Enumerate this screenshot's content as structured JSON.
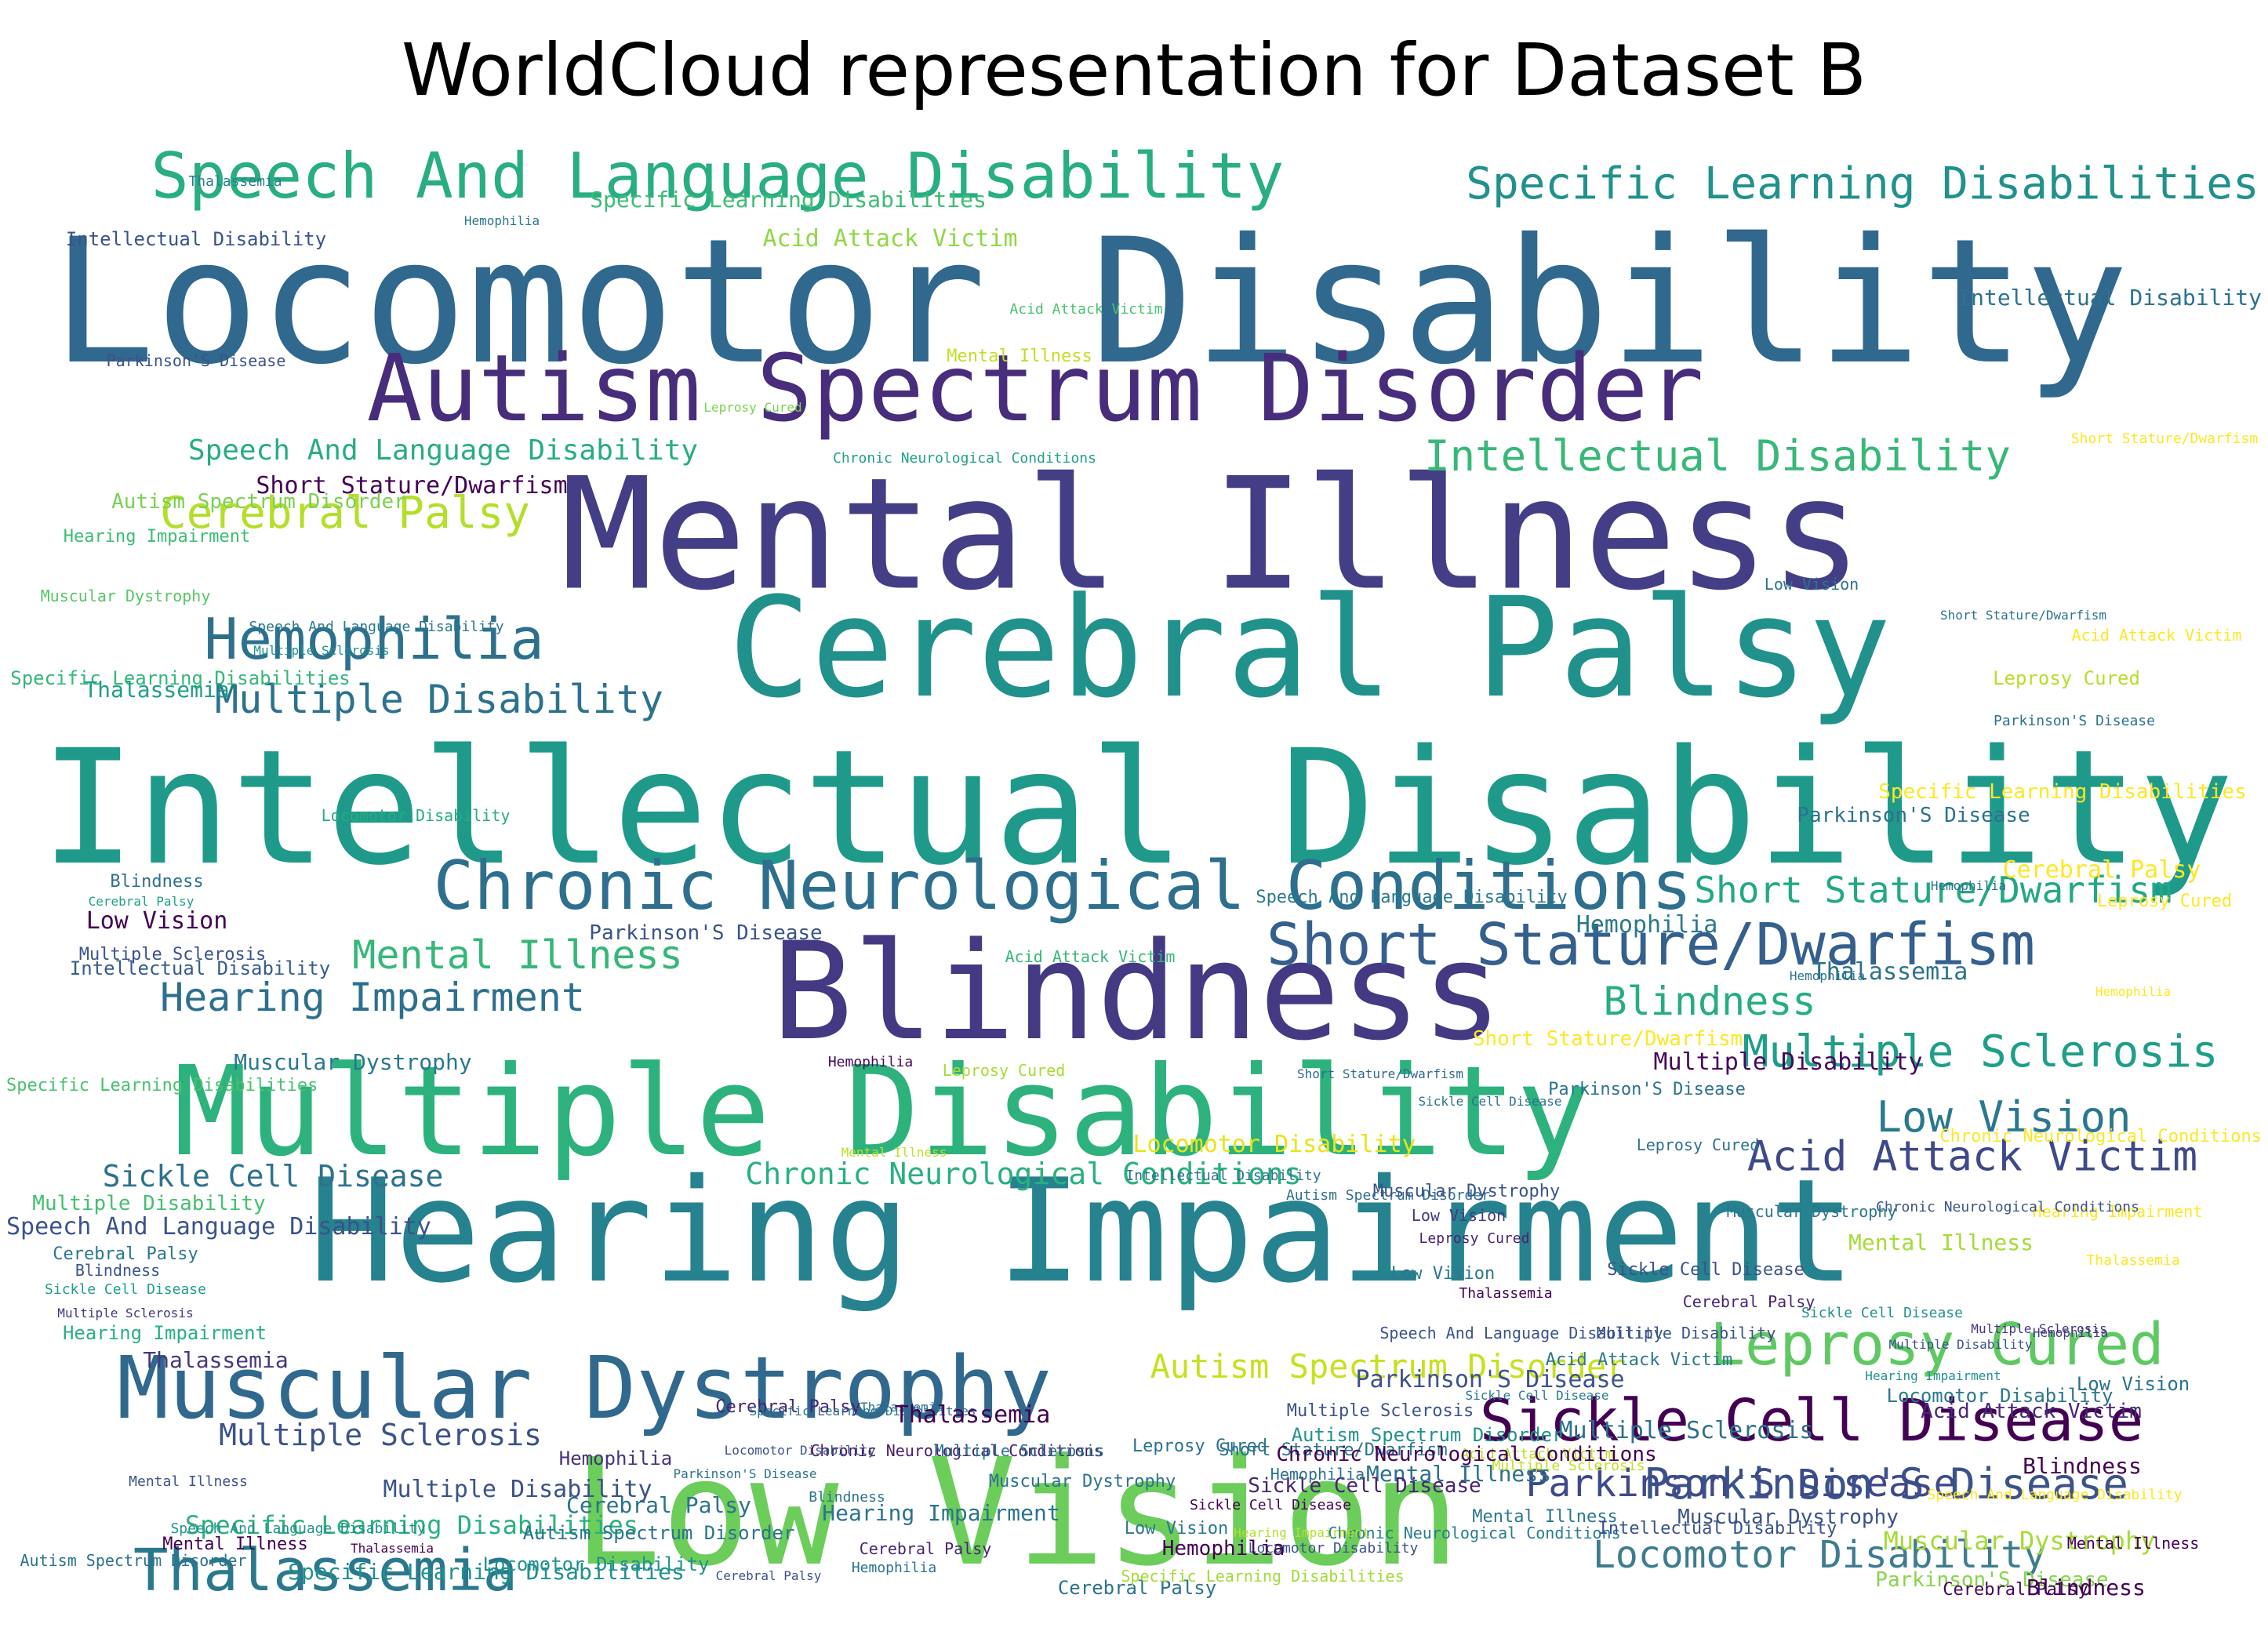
{
  "title": "WorldCloud representation for Dataset B",
  "words": [
    {
      "text": "Locomotor Disability",
      "color": "#31688e"
    },
    {
      "text": "Intellectual Disability",
      "color": "#1f9a8a"
    },
    {
      "text": "Mental Illness",
      "color": "#433e85"
    },
    {
      "text": "Hearing Impairment",
      "color": "#26828e"
    },
    {
      "text": "Blindness",
      "color": "#443983"
    },
    {
      "text": "Cerebral Palsy",
      "color": "#21918c"
    },
    {
      "text": "Low Vision",
      "color": "#6ccd5a"
    },
    {
      "text": "Multiple Disability",
      "color": "#2db27d"
    },
    {
      "text": "Autism Spectrum Disorder",
      "color": "#472d7b"
    },
    {
      "text": "Speech And Language Disability",
      "color": "#28ae80"
    },
    {
      "text": "Chronic Neurological Conditions",
      "color": "#2e6f8e"
    },
    {
      "text": "Muscular Dystrophy",
      "color": "#31688e"
    },
    {
      "text": "Specific Learning Disabilities",
      "color": "#21918c"
    },
    {
      "text": "Short Stature/Dwarfism",
      "color": "#355f8d"
    },
    {
      "text": "Sickle Cell Disease",
      "color": "#440154"
    },
    {
      "text": "Leprosy Cured",
      "color": "#5ec962"
    },
    {
      "text": "Thalassemia",
      "color": "#2a788e"
    },
    {
      "text": "Parkinson'S Disease",
      "color": "#3b528b"
    },
    {
      "text": "Acid Attack Victim",
      "color": "#3e4989"
    },
    {
      "text": "Multiple Sclerosis",
      "color": "#1f9e89"
    },
    {
      "text": "Hemophilia",
      "color": "#2d708e"
    },
    {
      "text": "Hearing Impairment",
      "color": "#2d708e"
    },
    {
      "text": "Mental Illness",
      "color": "#35b779"
    },
    {
      "text": "Multiple Disability",
      "color": "#2c728e"
    },
    {
      "text": "Cerebral Palsy",
      "color": "#b5de2b"
    },
    {
      "text": "Intellectual Disability",
      "color": "#37b878"
    },
    {
      "text": "Blindness",
      "color": "#27ad81"
    },
    {
      "text": "Multiple Sclerosis",
      "color": "#3b528b"
    },
    {
      "text": "Chronic Neurological Conditions",
      "color": "#2ab07f"
    },
    {
      "text": "Sickle Cell Disease",
      "color": "#2c728e"
    },
    {
      "text": "Acid Attack Victim",
      "color": "#8fd744"
    },
    {
      "text": "Autism Spectrum Disorder",
      "color": "#c8e020"
    },
    {
      "text": "Leprosy Cured",
      "color": "#2c728e"
    },
    {
      "text": "Locomotor Disability",
      "color": "#3e7c8f"
    },
    {
      "text": "Speech And Language Disability",
      "color": "#27ad81"
    },
    {
      "text": "Specific Learning Disabilities",
      "color": "#2ab07f"
    },
    {
      "text": "Low Vision",
      "color": "#2a788e"
    },
    {
      "text": "Parkinson'S Disease",
      "color": "#3e4a89"
    },
    {
      "text": "Short Stature/Dwarfism",
      "color": "#22a884"
    },
    {
      "text": "Muscular Dystrophy",
      "color": "#a5db36"
    },
    {
      "text": "Thalassemia",
      "color": "#287c8e"
    },
    {
      "text": "Hemophilia",
      "color": "#2a788e"
    },
    {
      "text": "Intellectual Disability",
      "color": "#3b528b"
    },
    {
      "text": "Specific Learning Disabilities",
      "color": "#3dbc74"
    },
    {
      "text": "Acid Attack Victim",
      "color": "#4ac16d"
    },
    {
      "text": "Parkinson'S Disease",
      "color": "#3b528b"
    },
    {
      "text": "Mental Illness",
      "color": "#c2df23"
    },
    {
      "text": "Leprosy Cured",
      "color": "#7ad151"
    },
    {
      "text": "Short Stature/Dwarfism",
      "color": "#440154"
    },
    {
      "text": "Autism Spectrum Disorder",
      "color": "#7ad151"
    },
    {
      "text": "Hearing Impairment",
      "color": "#3dbc74"
    },
    {
      "text": "Muscular Dystrophy",
      "color": "#56c667"
    },
    {
      "text": "Speech And Language Disability",
      "color": "#2a788e"
    },
    {
      "text": "Multiple Sclerosis",
      "color": "#21918c"
    },
    {
      "text": "Specific Learning Disabilities",
      "color": "#35b779"
    },
    {
      "text": "Thalassemia",
      "color": "#1f9e89"
    },
    {
      "text": "Chronic Neurological Conditions",
      "color": "#1fa188"
    },
    {
      "text": "Locomotor Disability",
      "color": "#25ab82"
    },
    {
      "text": "Blindness",
      "color": "#2e6f8e"
    },
    {
      "text": "Cerebral Palsy",
      "color": "#1fa188"
    },
    {
      "text": "Low Vision",
      "color": "#440154"
    },
    {
      "text": "Parkinson'S Disease",
      "color": "#3b528b"
    },
    {
      "text": "Multiple Sclerosis",
      "color": "#3b528b"
    },
    {
      "text": "Acid Attack Victim",
      "color": "#35b779"
    },
    {
      "text": "Autism Spectrum Disorder",
      "color": "#2e6f8e"
    },
    {
      "text": "Mental Illness",
      "color": "#bddf26"
    },
    {
      "text": "Intellectual Disability",
      "color": "#365c8d"
    },
    {
      "text": "Muscular Dystrophy",
      "color": "#2a788e"
    },
    {
      "text": "Hemophilia",
      "color": "#46085c"
    },
    {
      "text": "Leprosy Cured",
      "color": "#a8db34"
    },
    {
      "text": "Specific Learning Disabilities",
      "color": "#47c16e"
    },
    {
      "text": "Short Stature/Dwarfism",
      "color": "#30698e"
    },
    {
      "text": "Speech And Language Disability",
      "color": "#3b528b"
    },
    {
      "text": "Multiple Disability",
      "color": "#44bf70"
    },
    {
      "text": "Cerebral Palsy",
      "color": "#2a788e"
    },
    {
      "text": "Blindness",
      "color": "#3b528b"
    },
    {
      "text": "Sickle Cell Disease",
      "color": "#1f9e89"
    },
    {
      "text": "Multiple Sclerosis",
      "color": "#46327e"
    },
    {
      "text": "Hearing Impairment",
      "color": "#2ab07f"
    },
    {
      "text": "Thalassemia",
      "color": "#453781"
    },
    {
      "text": "Mental Illness",
      "color": "#3b528b"
    },
    {
      "text": "Chronic Neurological Conditions",
      "color": "#481b6d"
    },
    {
      "text": "Cerebral Palsy",
      "color": "#482475"
    },
    {
      "text": "Thalassemia",
      "color": "#2c728e"
    },
    {
      "text": "Locomotor Disability",
      "color": "#e7e419"
    },
    {
      "text": "Acid Attack Victim",
      "color": "#482878"
    },
    {
      "text": "Sickle Cell Disease",
      "color": "#3b528b"
    },
    {
      "text": "Low Vision",
      "color": "#443983"
    },
    {
      "text": "Leprosy Cured",
      "color": "#482173"
    },
    {
      "text": "Locomotor Disability",
      "color": "#3b528b"
    },
    {
      "text": "Hemophilia",
      "color": "#46327e"
    },
    {
      "text": "Cerebral Palsy",
      "color": "#2c728e"
    },
    {
      "text": "Thalassemia",
      "color": "#440154"
    },
    {
      "text": "Speech And Language Disability",
      "color": "#3b528b"
    },
    {
      "text": "Multiple Sclerosis",
      "color": "#3b528b"
    },
    {
      "text": "Hemophilia",
      "color": "#433e85"
    },
    {
      "text": "Thalassemia",
      "color": "#2c728e"
    },
    {
      "text": "Parkinson'S Disease",
      "color": "#86d549"
    },
    {
      "text": "Mental Illness",
      "color": "#2a788e"
    },
    {
      "text": "Chronic Neurological Conditions",
      "color": "#287c8e"
    },
    {
      "text": "Acid Attack Victim",
      "color": "#b8de29"
    },
    {
      "text": "Hemophilia",
      "color": "#2c728e"
    },
    {
      "text": "Cerebral Palsy",
      "color": "#2c728e"
    },
    {
      "text": "Blindness",
      "color": "#440154"
    },
    {
      "text": "Intellectual Disability",
      "color": "#2c728e"
    },
    {
      "text": "Leprosy Cured",
      "color": "#2d708e"
    },
    {
      "text": "Low Vision",
      "color": "#2a788e"
    },
    {
      "text": "Multiple Disability",
      "color": "#3b528b"
    },
    {
      "text": "Multiple Sclerosis",
      "color": "#2e6f8e"
    },
    {
      "text": "Muscular Dystrophy",
      "color": "#3b528b"
    },
    {
      "text": "Intellectual Disability",
      "color": "#3b528b"
    },
    {
      "text": "Specific Learning Disabilities",
      "color": "#a2da37"
    },
    {
      "text": "Locomotor Disability",
      "color": "#3b528b"
    },
    {
      "text": "Hearing Impairment",
      "color": "#b5de2b"
    },
    {
      "text": "Autism Spectrum Disorder",
      "color": "#21918c"
    },
    {
      "text": "Mental Illness",
      "color": "#2c728e"
    },
    {
      "text": "Multiple Sclerosis",
      "color": "#c0df25"
    },
    {
      "text": "Multiple Disability",
      "color": "#3b528b"
    },
    {
      "text": "Muscular Dystrophy",
      "color": "#3b528b"
    },
    {
      "text": "Sickle Cell Disease",
      "color": "#2c728e"
    },
    {
      "text": "Hemophilia",
      "color": "#2a788e"
    },
    {
      "text": "Parkinson'S Disease",
      "color": "#2c728e"
    },
    {
      "text": "Speech And Language Disability",
      "color": "#2a788e"
    },
    {
      "text": "Low Vision",
      "color": "#2c728e"
    },
    {
      "text": "Parkinson'S Disease",
      "color": "#2c728e"
    },
    {
      "text": "Short Stature/Dwarfism",
      "color": "#2c728e"
    },
    {
      "text": "Leprosy Cured",
      "color": "#b5de2b"
    },
    {
      "text": "Intellectual Disability",
      "color": "#2c728e"
    },
    {
      "text": "Short Stature/Dwarfism",
      "color": "#fde725"
    },
    {
      "text": "Acid Attack Victim",
      "color": "#fde725"
    },
    {
      "text": "Leprosy Cured",
      "color": "#fde725"
    },
    {
      "text": "Hemophilia",
      "color": "#fde725"
    },
    {
      "text": "Cerebral Palsy",
      "color": "#fde725"
    },
    {
      "text": "Specific Learning Disabilities",
      "color": "#fde725"
    },
    {
      "text": "Chronic Neurological Conditions",
      "color": "#fde725"
    },
    {
      "text": "Hearing Impairment",
      "color": "#fde725"
    },
    {
      "text": "Thalassemia",
      "color": "#fde725"
    },
    {
      "text": "Multiple Sclerosis",
      "color": "#46337f"
    },
    {
      "text": "Low Vision",
      "color": "#2c728e"
    },
    {
      "text": "Blindness",
      "color": "#440154"
    },
    {
      "text": "Speech And Language Disability",
      "color": "#fde725"
    },
    {
      "text": "Mental Illness",
      "color": "#440154"
    },
    {
      "text": "Cerebral Palsy",
      "color": "#46085c"
    },
    {
      "text": "Hemophilia",
      "color": "#2c728e"
    },
    {
      "text": "Multiple Disability",
      "color": "#46085c"
    },
    {
      "text": "Short Stature/Dwarfism",
      "color": "#fde725"
    },
    {
      "text": "Parkinson'S Disease",
      "color": "#2c728e"
    },
    {
      "text": "Cerebral Palsy",
      "color": "#482475"
    },
    {
      "text": "Sickle Cell Disease",
      "color": "#21918c"
    },
    {
      "text": "Hearing Impairment",
      "color": "#21918c"
    },
    {
      "text": "Locomotor Disability",
      "color": "#2a788e"
    },
    {
      "text": "Mental Illness",
      "color": "#a5db36"
    },
    {
      "text": "Chronic Neurological Conditions",
      "color": "#3b528b"
    },
    {
      "text": "Muscular Dystrophy",
      "color": "#2a788e"
    },
    {
      "text": "Acid Attack Victim",
      "color": "#2a788e"
    },
    {
      "text": "Sickle Cell Disease",
      "color": "#2a788e"
    },
    {
      "text": "Parkinson'S Disease",
      "color": "#3b528b"
    },
    {
      "text": "Sickle Cell Disease",
      "color": "#482475"
    },
    {
      "text": "Low Vision",
      "color": "#2a788e"
    },
    {
      "text": "Cerebral Palsy",
      "color": "#482475"
    },
    {
      "text": "Hemophilia",
      "color": "#2c728e"
    },
    {
      "text": "Cerebral Palsy",
      "color": "#3b528b"
    },
    {
      "text": "Locomotor Disability",
      "color": "#21918c"
    },
    {
      "text": "Specific Learning Disabilities",
      "color": "#21918c"
    },
    {
      "text": "Speech And Language Disability",
      "color": "#21918c"
    },
    {
      "text": "Autism Spectrum Disorder",
      "color": "#2c728e"
    },
    {
      "text": "Mental Illness",
      "color": "#440154"
    },
    {
      "text": "Thalassemia",
      "color": "#440154"
    },
    {
      "text": "Multiple Disability",
      "color": "#3b528b"
    },
    {
      "text": "Hemophilia",
      "color": "#440154"
    },
    {
      "text": "Muscular Dystrophy",
      "color": "#2c728e"
    },
    {
      "text": "Multiple Sclerosis",
      "color": "#2c728e"
    },
    {
      "text": "Blindness",
      "color": "#2c728e"
    },
    {
      "text": "Parkinson'S Disease",
      "color": "#2c728e"
    },
    {
      "text": "Autism Spectrum Disorder",
      "color": "#2c728e"
    },
    {
      "text": "Hearing Impairment",
      "color": "#2c728e"
    },
    {
      "text": "Sickle Cell Disease",
      "color": "#440154"
    },
    {
      "text": "Hemophilia",
      "color": "#2c728e"
    },
    {
      "text": "Short Stature/Dwarfism",
      "color": "#2c728e"
    },
    {
      "text": "Specific Learning Disabilities",
      "color": "#2c728e"
    },
    {
      "text": "Thalassemia",
      "color": "#440154"
    },
    {
      "text": "Chronic Neurological Conditions",
      "color": "#440154"
    }
  ]
}
